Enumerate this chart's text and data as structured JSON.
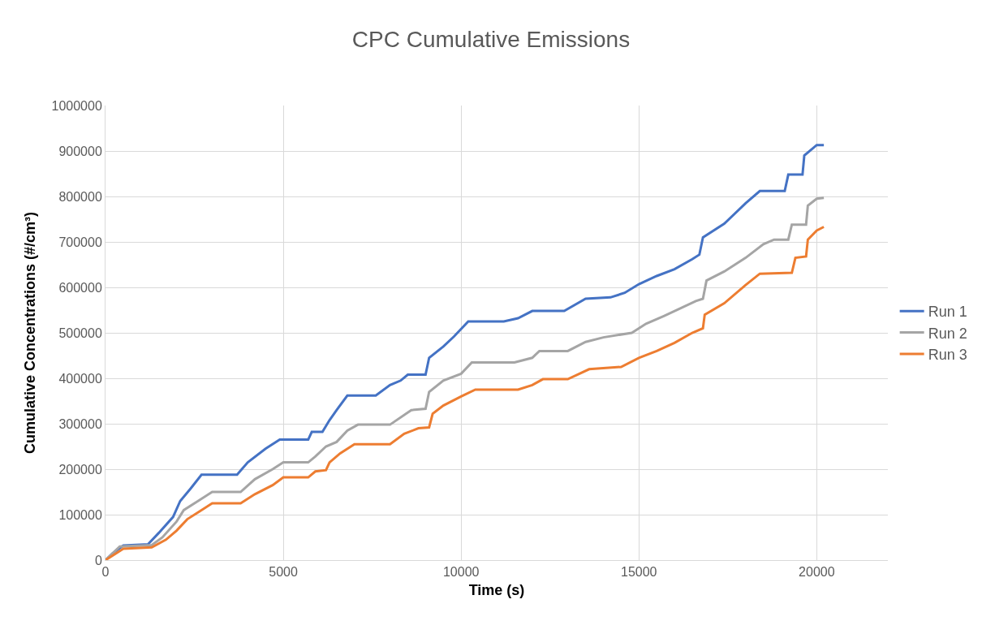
{
  "chart_data": {
    "type": "line",
    "title": "CPC Cumulative Emissions",
    "xlabel": "Time (s)",
    "ylabel": "Cumulative Concentrations (#/cm³)",
    "xlim": [
      0,
      22000
    ],
    "xticks": [
      0,
      5000,
      10000,
      15000,
      20000
    ],
    "ylim": [
      0,
      1000000
    ],
    "yticks": [
      0,
      100000,
      200000,
      300000,
      400000,
      500000,
      600000,
      700000,
      800000,
      900000,
      1000000
    ],
    "grid": true,
    "legend": "right",
    "marker": "none",
    "line_style": "solid",
    "series": [
      {
        "name": "Run 1",
        "color": "#4472c4",
        "x": [
          0,
          200,
          500,
          1200,
          1500,
          1900,
          2100,
          2400,
          2700,
          3700,
          4000,
          4500,
          4900,
          5700,
          5800,
          6100,
          6300,
          6500,
          6800,
          7600,
          8000,
          8300,
          8500,
          9000,
          9100,
          9500,
          9800,
          10200,
          11200,
          11600,
          12000,
          12900,
          13500,
          14200,
          14600,
          15000,
          15500,
          16000,
          16500,
          16700,
          16800,
          17400,
          18000,
          18400,
          19100,
          19200,
          19600,
          19650,
          20000,
          20200
        ],
        "values": [
          0,
          15000,
          32000,
          35000,
          60000,
          95000,
          130000,
          158000,
          188000,
          188000,
          215000,
          245000,
          265000,
          265000,
          282000,
          282000,
          308000,
          330000,
          362000,
          362000,
          385000,
          395000,
          408000,
          408000,
          445000,
          470000,
          492000,
          525000,
          525000,
          532000,
          548000,
          548000,
          575000,
          578000,
          588000,
          607000,
          625000,
          640000,
          662000,
          672000,
          710000,
          740000,
          785000,
          812000,
          812000,
          848000,
          848000,
          890000,
          913000,
          913000
        ]
      },
      {
        "name": "Run 2",
        "color": "#a5a5a5",
        "x": [
          0,
          400,
          1300,
          1600,
          2000,
          2200,
          2600,
          3000,
          3800,
          4200,
          4700,
          5000,
          5700,
          5900,
          6200,
          6500,
          6800,
          7100,
          8000,
          8600,
          9000,
          9100,
          9500,
          10000,
          10300,
          11500,
          12000,
          12200,
          13000,
          13500,
          14000,
          14800,
          15200,
          15700,
          16200,
          16600,
          16800,
          16900,
          17400,
          18000,
          18500,
          18800,
          19200,
          19300,
          19700,
          19750,
          20000,
          20200
        ],
        "values": [
          0,
          30000,
          33000,
          50000,
          85000,
          110000,
          130000,
          150000,
          150000,
          178000,
          200000,
          215000,
          215000,
          228000,
          250000,
          260000,
          285000,
          298000,
          298000,
          330000,
          333000,
          370000,
          395000,
          410000,
          435000,
          435000,
          445000,
          460000,
          460000,
          480000,
          490000,
          500000,
          520000,
          537000,
          555000,
          570000,
          575000,
          615000,
          635000,
          665000,
          695000,
          705000,
          705000,
          738000,
          738000,
          780000,
          795000,
          797000
        ]
      },
      {
        "name": "Run 3",
        "color": "#ed7d31",
        "x": [
          0,
          500,
          1300,
          1700,
          2000,
          2300,
          2600,
          3000,
          3800,
          4200,
          4700,
          5000,
          5700,
          5900,
          6200,
          6300,
          6600,
          7000,
          8000,
          8400,
          8800,
          9100,
          9200,
          9500,
          10000,
          10400,
          11600,
          12000,
          12300,
          13000,
          13600,
          14500,
          15000,
          15500,
          16000,
          16500,
          16800,
          16850,
          17400,
          18000,
          18400,
          19300,
          19400,
          19700,
          19750,
          20000,
          20200
        ],
        "values": [
          0,
          25000,
          28000,
          45000,
          65000,
          90000,
          105000,
          125000,
          125000,
          145000,
          165000,
          182000,
          182000,
          195000,
          198000,
          215000,
          235000,
          255000,
          255000,
          278000,
          290000,
          292000,
          322000,
          340000,
          360000,
          375000,
          375000,
          385000,
          398000,
          398000,
          420000,
          425000,
          445000,
          460000,
          478000,
          500000,
          510000,
          540000,
          565000,
          605000,
          630000,
          632000,
          665000,
          668000,
          705000,
          725000,
          733000
        ]
      }
    ]
  }
}
